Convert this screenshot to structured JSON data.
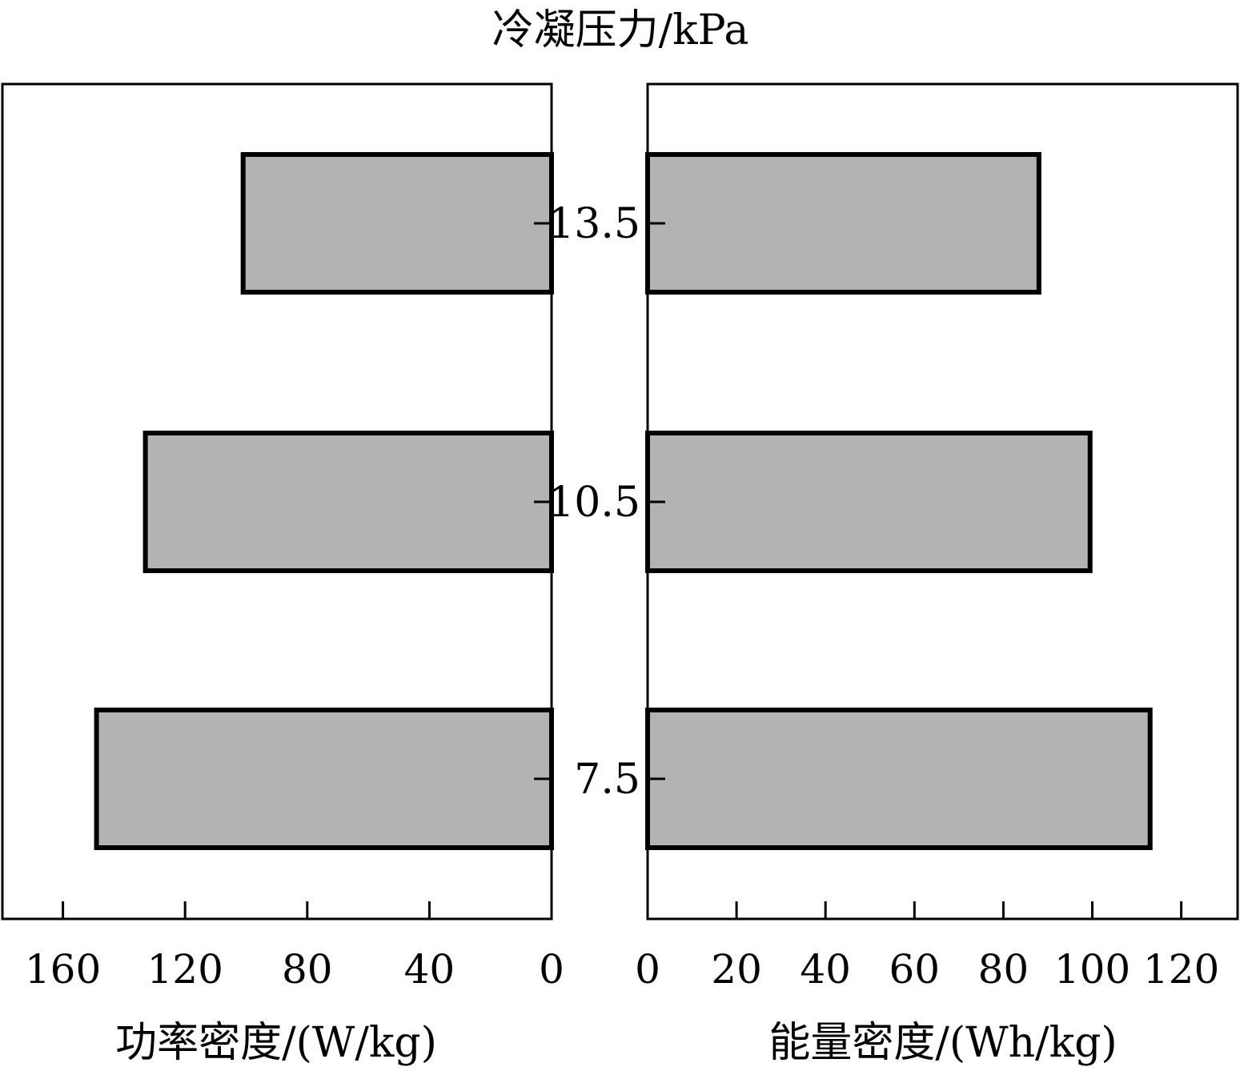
{
  "chart_data": [
    {
      "type": "bar",
      "orientation": "horizontal",
      "direction": "right-to-left",
      "categories": [
        "7.5",
        "10.5",
        "13.5"
      ],
      "values": [
        149,
        133,
        101
      ],
      "xlabel": "功率密度/(W/kg)",
      "xlim": [
        0,
        180
      ],
      "xticks": [
        "160",
        "120",
        "80",
        "40",
        "0"
      ],
      "bar_color": "#b3b3b3"
    },
    {
      "type": "bar",
      "orientation": "horizontal",
      "direction": "left-to-right",
      "categories": [
        "7.5",
        "10.5",
        "13.5"
      ],
      "values": [
        113,
        99.5,
        88
      ],
      "xlabel": "能量密度/(Wh/kg)",
      "xlim": [
        0,
        133
      ],
      "xticks": [
        "0",
        "20",
        "40",
        "60",
        "80",
        "100",
        "120"
      ],
      "bar_color": "#b3b3b3"
    }
  ],
  "shared_axis": {
    "title": "冷凝压力/kPa",
    "tick_labels": [
      "7.5",
      "10.5",
      "13.5"
    ]
  }
}
